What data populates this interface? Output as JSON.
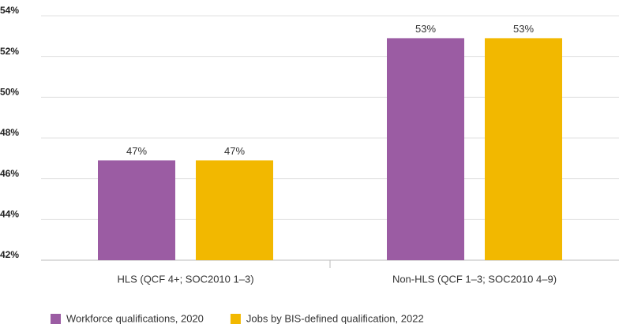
{
  "chart_data": {
    "type": "bar",
    "categories": [
      "HLS (QCF 4+; SOC2010 1–3)",
      "Non-HLS (QCF 1–3; SOC2010 4–9)"
    ],
    "series": [
      {
        "name": "Workforce qualifications, 2020",
        "color": "#9b5ca3",
        "values": [
          46.9,
          52.9
        ],
        "value_labels": [
          "47%",
          "53%"
        ]
      },
      {
        "name": "Jobs by BIS-defined qualification, 2022",
        "color": "#f2b800",
        "values": [
          46.9,
          52.9
        ],
        "value_labels": [
          "47%",
          "53%"
        ]
      }
    ],
    "ylim": [
      42,
      54
    ],
    "yticks": [
      {
        "value": 42,
        "label": "42%"
      },
      {
        "value": 44,
        "label": "44%"
      },
      {
        "value": 46,
        "label": "46%"
      },
      {
        "value": 48,
        "label": "48%"
      },
      {
        "value": 50,
        "label": "50%"
      },
      {
        "value": 52,
        "label": "52%"
      },
      {
        "value": 54,
        "label": "54%"
      }
    ],
    "grid": true,
    "legend": "bottom-left"
  }
}
